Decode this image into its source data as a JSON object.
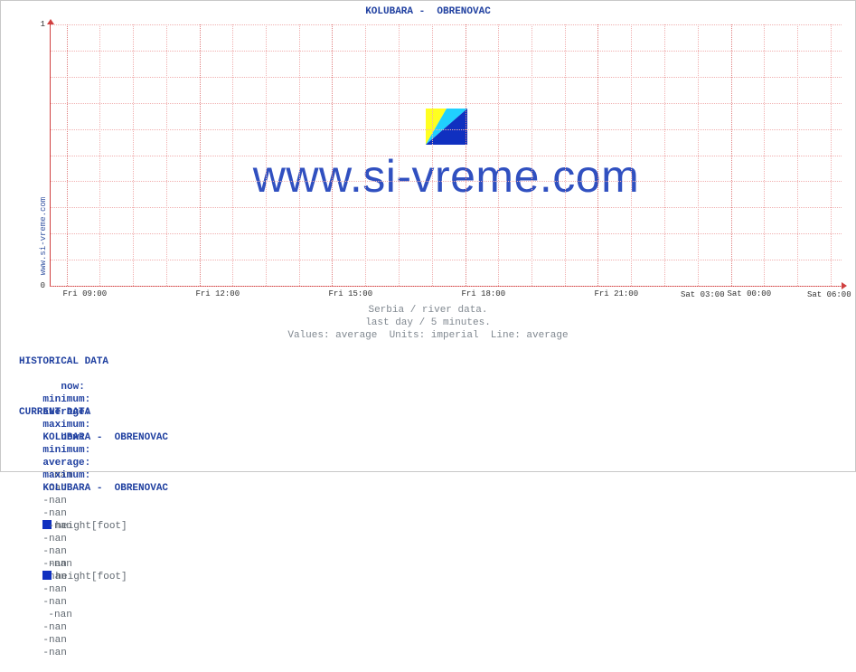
{
  "side_label": "www.si-vreme.com",
  "chart": {
    "title": "KOLUBARA -  OBRENOVAC",
    "type": "line",
    "ylim": [
      0,
      1
    ],
    "yticks": [
      {
        "pos": 0.0,
        "label": "0"
      },
      {
        "pos": 1.0,
        "label": "1"
      }
    ],
    "hgrid_rows": 10,
    "x_label_every_n": 4,
    "xticks": [
      {
        "pos": 0.02,
        "label": "Fri 09:00",
        "major": true
      },
      {
        "pos": 0.062,
        "label": "",
        "major": false
      },
      {
        "pos": 0.104,
        "label": "",
        "major": false
      },
      {
        "pos": 0.146,
        "label": "",
        "major": false
      },
      {
        "pos": 0.188,
        "label": "Fri 12:00",
        "major": true
      },
      {
        "pos": 0.23,
        "label": "",
        "major": false
      },
      {
        "pos": 0.272,
        "label": "",
        "major": false
      },
      {
        "pos": 0.314,
        "label": "",
        "major": false
      },
      {
        "pos": 0.356,
        "label": "Fri 15:00",
        "major": true
      },
      {
        "pos": 0.398,
        "label": "",
        "major": false
      },
      {
        "pos": 0.44,
        "label": "",
        "major": false
      },
      {
        "pos": 0.482,
        "label": "",
        "major": false
      },
      {
        "pos": 0.524,
        "label": "Fri 18:00",
        "major": true
      },
      {
        "pos": 0.566,
        "label": "",
        "major": false
      },
      {
        "pos": 0.608,
        "label": "",
        "major": false
      },
      {
        "pos": 0.65,
        "label": "",
        "major": false
      },
      {
        "pos": 0.692,
        "label": "Fri 21:00",
        "major": true
      },
      {
        "pos": 0.734,
        "label": "",
        "major": false
      },
      {
        "pos": 0.776,
        "label": "",
        "major": false
      },
      {
        "pos": 0.818,
        "label": "",
        "major": false
      },
      {
        "pos": 0.86,
        "label": "Sat 00:00",
        "major": true
      },
      {
        "pos": 0.902,
        "label": "",
        "major": false
      },
      {
        "pos": 0.944,
        "label": "",
        "major": false
      },
      {
        "pos": 0.986,
        "label": "",
        "major": false
      }
    ],
    "xticks_extra_labels": [
      {
        "pos": 1.028,
        "label": "Sat 03:00"
      },
      {
        "pos": 1.196,
        "label": "Sat 06:00"
      }
    ],
    "axis_color": "#d04040",
    "grid_color_minor": "#f0b0b0",
    "grid_color_major": "#e08080",
    "background_color": "#ffffff"
  },
  "watermark": {
    "text": "www.si-vreme.com",
    "text_color": "#3050c0",
    "icon_colors": {
      "yellow": "#ffff20",
      "cyan": "#20d0ff",
      "blue": "#1030c0"
    }
  },
  "caption": {
    "line1": "Serbia / river data.",
    "line2": "last day / 5 minutes.",
    "line3": "Values: average  Units: imperial  Line: average"
  },
  "tables": {
    "columns": [
      "now:",
      "minimum:",
      "average:",
      "maximum:"
    ],
    "historical": {
      "header": "HISTORICAL DATA",
      "series_label": "KOLUBARA -  OBRENOVAC",
      "rows": [
        {
          "now": "-nan",
          "min": "-nan",
          "avg": "-nan",
          "max": "-nan",
          "swatch": "#1030c0",
          "metric": "height[foot]"
        },
        {
          "now": "-nan",
          "min": "-nan",
          "avg": "-nan",
          "max": "-nan",
          "swatch": null,
          "metric": ""
        }
      ]
    },
    "current": {
      "header": "CURRENT DATA",
      "series_label": "KOLUBARA -  OBRENOVAC",
      "rows": [
        {
          "now": "-nan",
          "min": "-nan",
          "avg": "-nan",
          "max": "-nan",
          "swatch": "#1030c0",
          "metric": "height[foot]"
        },
        {
          "now": "-nan",
          "min": "-nan",
          "avg": "-nan",
          "max": "-nan",
          "swatch": null,
          "metric": ""
        }
      ]
    }
  }
}
